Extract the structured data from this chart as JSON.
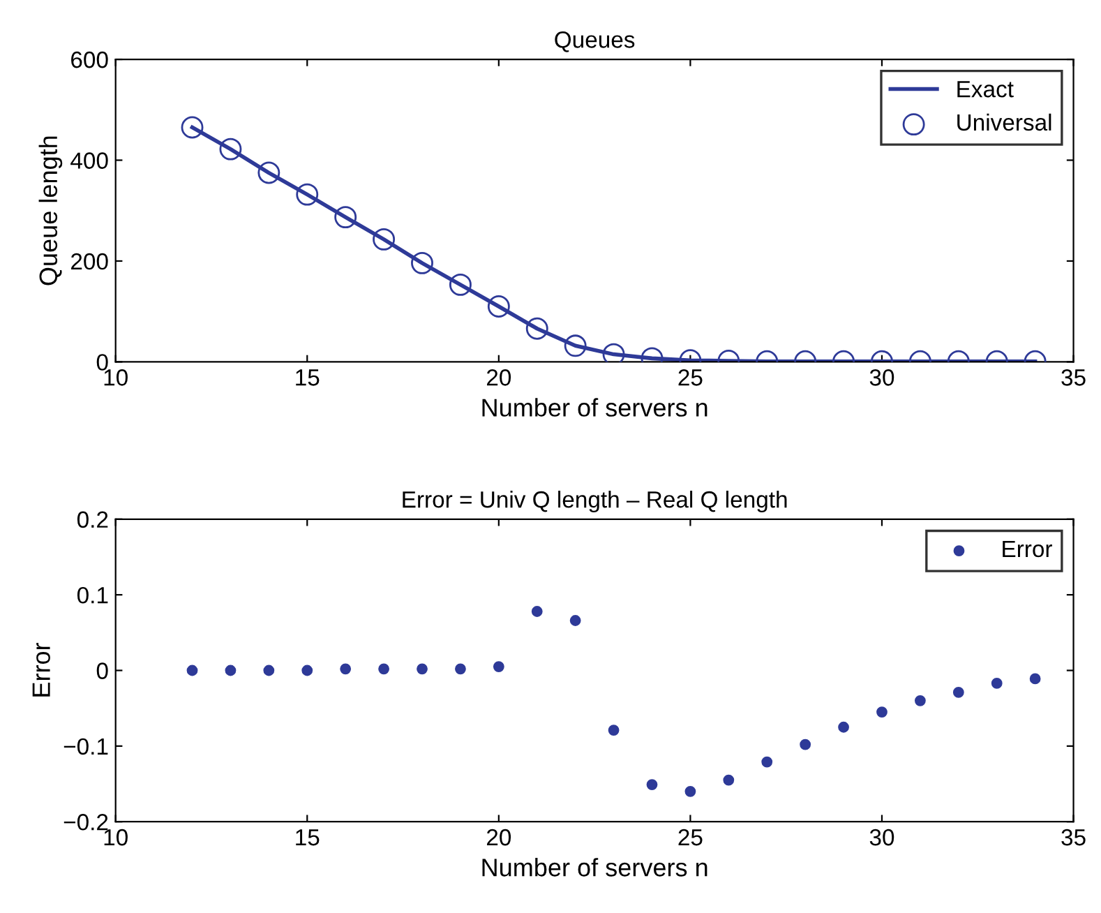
{
  "chart_data": [
    {
      "type": "line",
      "title": "Queues",
      "xlabel": "Number of servers n",
      "ylabel": "Queue length",
      "x": [
        12,
        13,
        14,
        15,
        16,
        17,
        18,
        19,
        20,
        21,
        22,
        23,
        24,
        25,
        26,
        27,
        28,
        29,
        30,
        31,
        32,
        33,
        34
      ],
      "xlim": [
        10,
        35
      ],
      "xticks": [
        10,
        15,
        20,
        25,
        30,
        35
      ],
      "ylim": [
        0,
        600
      ],
      "yticks": [
        0,
        200,
        400,
        600
      ],
      "legend": "top right",
      "grid": false,
      "series": [
        {
          "name": "Exact",
          "marker": "none",
          "line_style": "solid",
          "color": "#2e3a98",
          "values": [
            465,
            422,
            375,
            332,
            287,
            243,
            196,
            153,
            110,
            66,
            32,
            15,
            7,
            3,
            2,
            1,
            1,
            1,
            1,
            1,
            1,
            1,
            1
          ]
        },
        {
          "name": "Universal",
          "type": "scatter",
          "marker": "circle",
          "color": "#2e3a98",
          "values": [
            465,
            422,
            375,
            332,
            287,
            243,
            196,
            153,
            110,
            66,
            32,
            15,
            7,
            3,
            2,
            1,
            1,
            1,
            1,
            1,
            1,
            1,
            1
          ]
        }
      ]
    },
    {
      "type": "scatter",
      "title": "Error = Univ Q length – Real Q length",
      "xlabel": "Number of servers n",
      "ylabel": "Error",
      "x": [
        12,
        13,
        14,
        15,
        16,
        17,
        18,
        19,
        20,
        21,
        22,
        23,
        24,
        25,
        26,
        27,
        28,
        29,
        30,
        31,
        32,
        33,
        34
      ],
      "xlim": [
        10,
        35
      ],
      "xticks": [
        10,
        15,
        20,
        25,
        30,
        35
      ],
      "ylim": [
        -0.2,
        0.2
      ],
      "yticks": [
        {
          "value": -0.2,
          "label": "−0.2"
        },
        {
          "value": -0.1,
          "label": "−0.1"
        },
        0,
        0.1,
        0.2
      ],
      "legend": "top right",
      "grid": false,
      "series": [
        {
          "name": "Error",
          "marker": "dot",
          "color": "#2e3a98",
          "values": [
            0.0,
            0.0,
            0.0,
            0.0,
            0.002,
            0.002,
            0.002,
            0.002,
            0.005,
            0.078,
            0.066,
            -0.079,
            -0.151,
            -0.16,
            -0.145,
            -0.121,
            -0.098,
            -0.075,
            -0.055,
            -0.04,
            -0.029,
            -0.017,
            -0.011
          ]
        }
      ]
    }
  ]
}
